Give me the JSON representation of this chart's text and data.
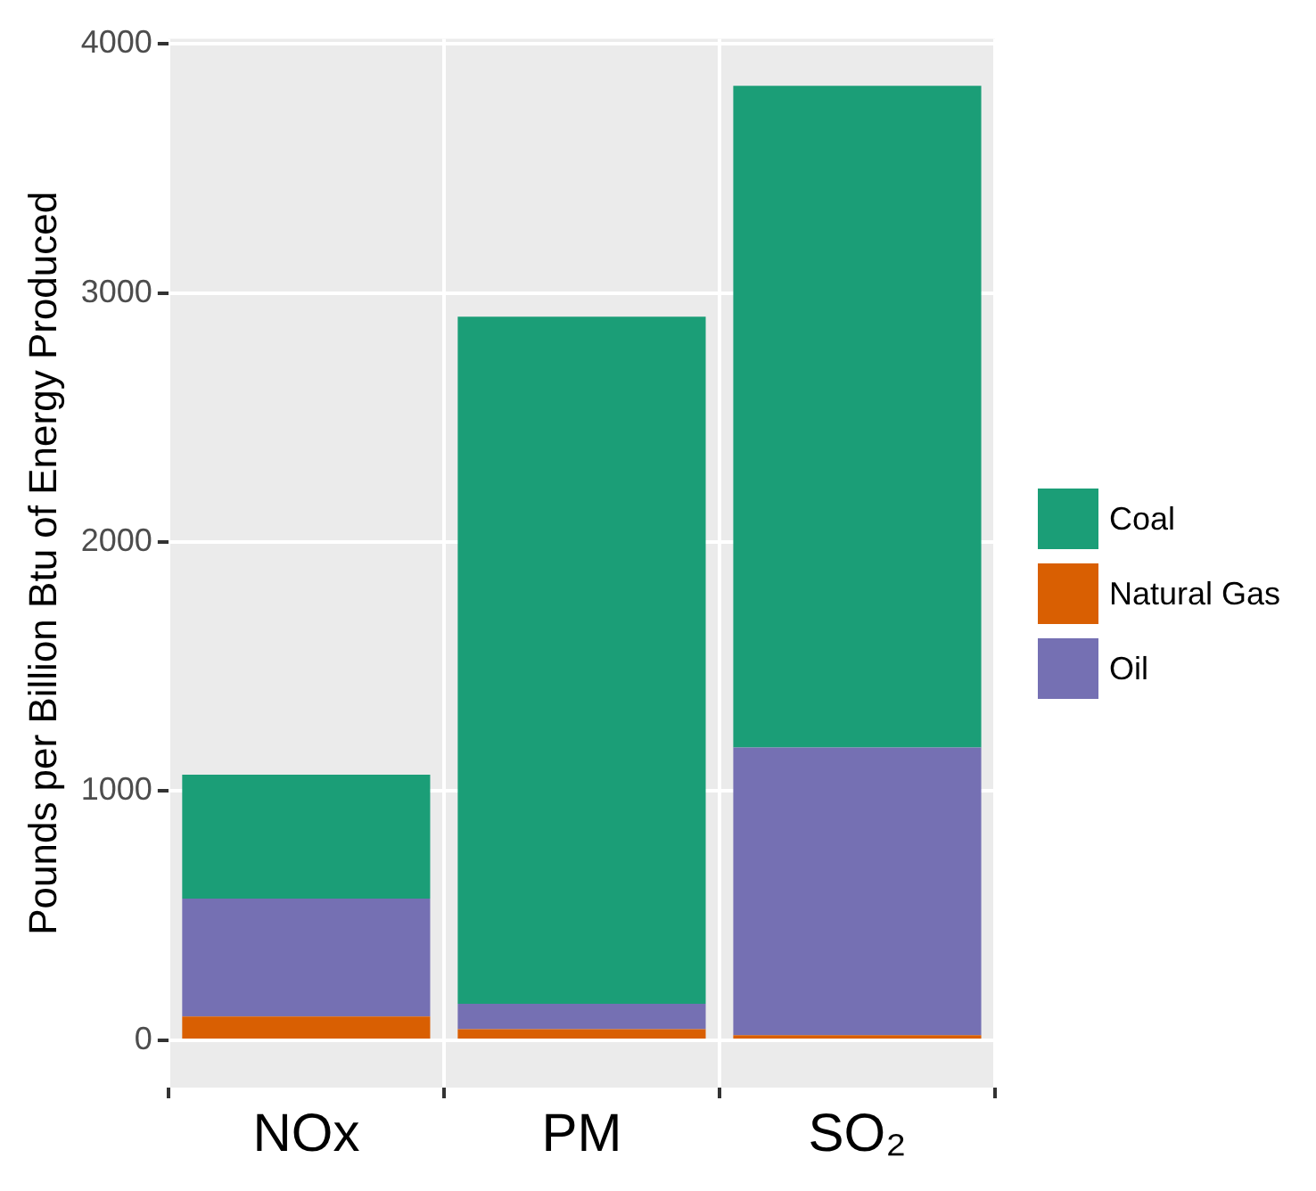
{
  "chart_data": {
    "type": "bar",
    "ylabel": "Pounds per Billion Btu of Energy Produced",
    "categories": [
      "NOx",
      "PM",
      "SO₂"
    ],
    "stacked": true,
    "legend": "right",
    "grid": true,
    "ylim": [
      -190,
      4020
    ],
    "yticks": [
      0,
      1000,
      2000,
      3000,
      4000
    ],
    "series": [
      {
        "name": "Natural Gas",
        "color": "#d95f02",
        "values": [
          95,
          44,
          20
        ]
      },
      {
        "name": "Oil",
        "color": "#7570b3",
        "values": [
          474,
          102,
          1155
        ]
      },
      {
        "name": "Coal",
        "color": "#1b9e77",
        "values": [
          497,
          2759,
          2657
        ]
      }
    ]
  }
}
